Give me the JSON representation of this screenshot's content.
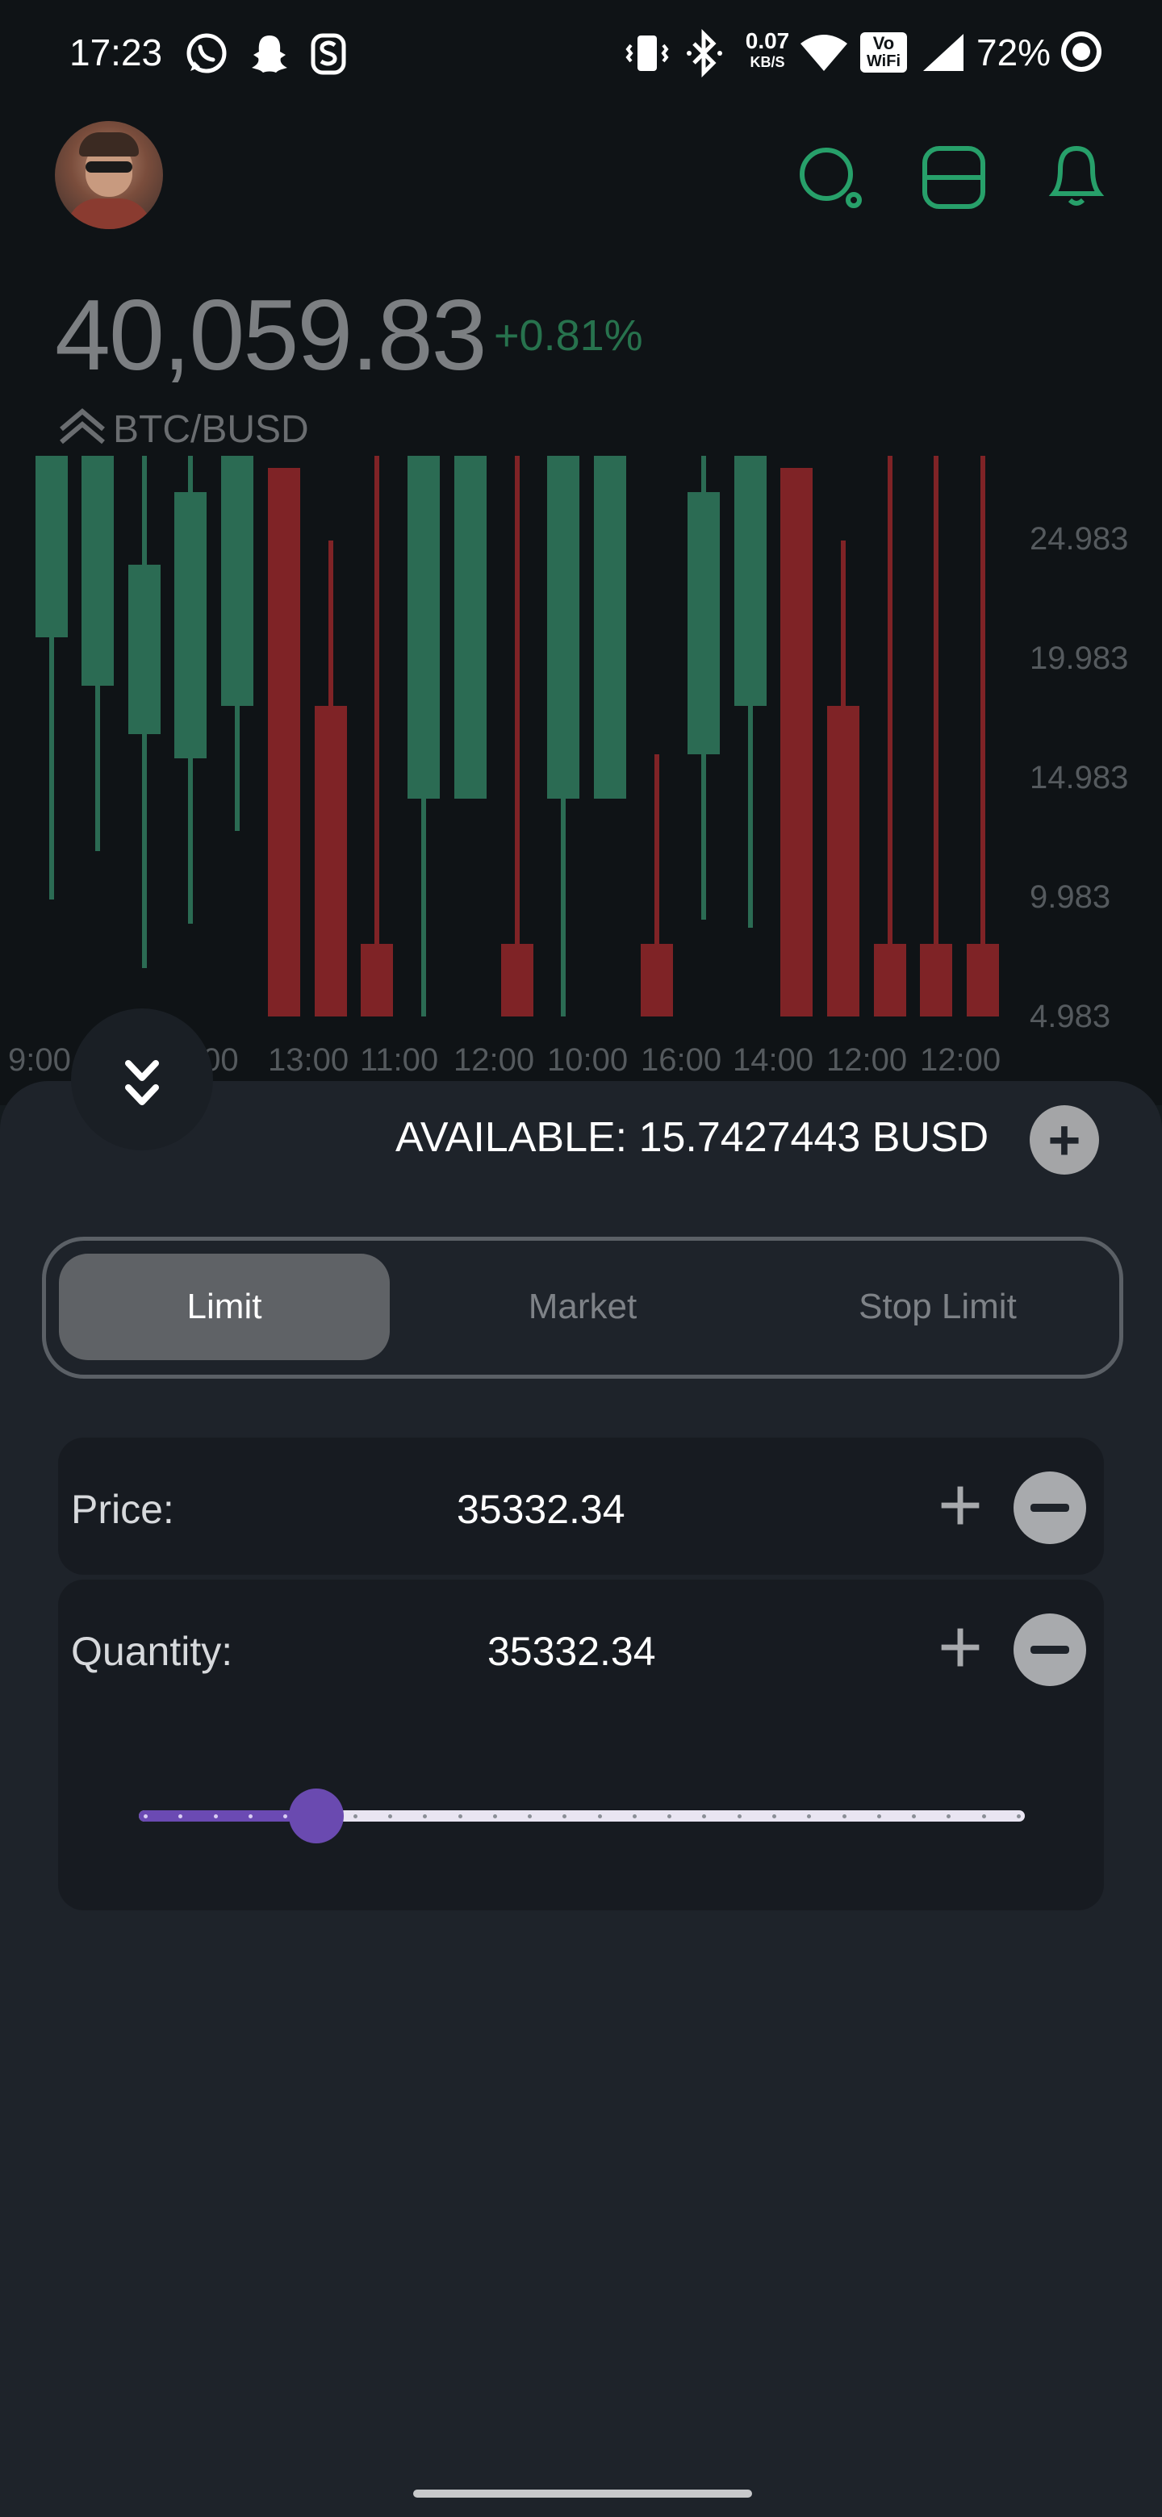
{
  "status_bar": {
    "time": "17:23",
    "net_speed_value": "0.07",
    "net_speed_unit": "KB/S",
    "wifi_badge_top": "Vo",
    "wifi_badge_bottom": "WiFi",
    "battery": "72%",
    "icons": [
      "whatsapp-icon",
      "snapchat-icon",
      "notification-s-icon",
      "vibrate-icon",
      "bluetooth-icon",
      "wifi-icon",
      "vowifi-icon",
      "signal-icon",
      "battery-ring-icon"
    ]
  },
  "header": {
    "price": "40,059.83",
    "change": "+0.81%",
    "pair": "BTC/BUSD",
    "icons": [
      "search-icon",
      "scan-icon",
      "bell-icon"
    ]
  },
  "chart_data": {
    "type": "candlestick",
    "x_labels": [
      "9:00",
      "",
      ":00",
      "13:00",
      "11:00",
      "12:00",
      "10:00",
      "16:00",
      "14:00",
      "12:00",
      "12:00"
    ],
    "y_ticks": [
      "24.983",
      "19.983",
      "14.983",
      "9.983",
      "4.983"
    ],
    "colors": {
      "up": "#2b6b53",
      "down": "#7f2326"
    }
  },
  "order_panel": {
    "collapse_icon": "double-chevron-down-icon",
    "available_label": "AVAILABLE: 15.7427443 BUSD",
    "tabs": [
      {
        "label": "Limit",
        "active": true
      },
      {
        "label": "Market",
        "active": false
      },
      {
        "label": "Stop Limit",
        "active": false
      }
    ],
    "price": {
      "label": "Price:",
      "value": "35332.34"
    },
    "quantity": {
      "label": "Quantity:",
      "value": "35332.34"
    },
    "slider_value": 0.2
  },
  "colors": {
    "accent": "#6a4ab0",
    "positive": "#27a06a",
    "negative": "#7f2326"
  }
}
